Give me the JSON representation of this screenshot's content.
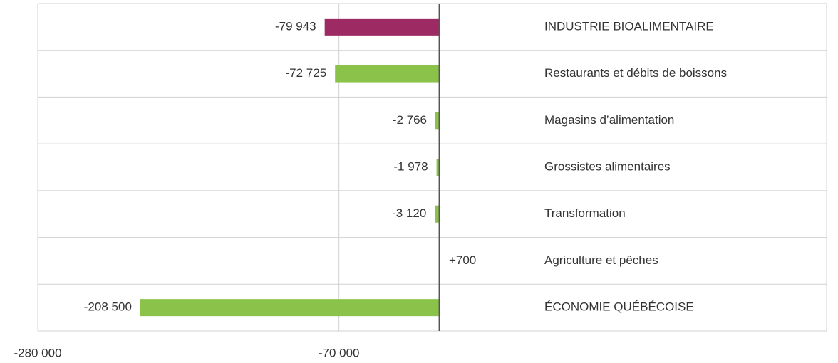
{
  "chart_data": {
    "type": "hbar",
    "categories": [
      "INDUSTRIE BIOALIMENTAIRE",
      "Restaurants et débits de boissons",
      "Magasins d’alimentation",
      "Grossistes alimentaires",
      "Transformation",
      "Agriculture et pêches",
      "ÉCONOMIE QUÉBÉCOISE"
    ],
    "values": [
      -79943,
      -72725,
      -2766,
      -1978,
      -3120,
      700,
      -208500
    ],
    "value_labels": [
      "-79 943",
      "-72 725",
      "-2 766",
      "-1 978",
      "-3 120",
      "+700",
      "-208 500"
    ],
    "colors": [
      "#9e2a64",
      "#8bc34a",
      "#8bc34a",
      "#8bc34a",
      "#8bc34a",
      "#8bc34a",
      "#8bc34a"
    ],
    "xlim": [
      -280000,
      270000
    ],
    "xticks": [
      {
        "value": -280000,
        "label": "-280 000"
      },
      {
        "value": -70000,
        "label": "-70 000"
      }
    ],
    "grid": true
  }
}
